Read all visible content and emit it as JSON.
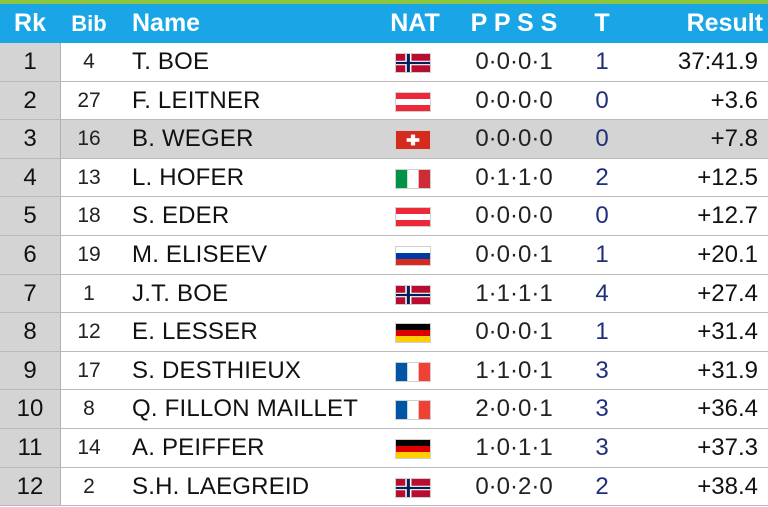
{
  "header": {
    "rank": "Rk",
    "bib": "Bib",
    "name": "Name",
    "nat": "NAT",
    "penalties": "P P S S",
    "total": "T",
    "result": "Result"
  },
  "colors": {
    "header_bg": "#1aa6e6",
    "accent_line": "#8cc63f",
    "rank_cell_bg": "#d4d4d4",
    "total_text": "#1f2f7a"
  },
  "rows": [
    {
      "rank": "1",
      "bib": "4",
      "name": "T. BOE",
      "nat": "NOR",
      "penalties": "0·0·0·1",
      "total": "1",
      "result": "37:41.9",
      "highlight": false
    },
    {
      "rank": "2",
      "bib": "27",
      "name": "F. LEITNER",
      "nat": "AUT",
      "penalties": "0·0·0·0",
      "total": "0",
      "result": "+3.6",
      "highlight": false
    },
    {
      "rank": "3",
      "bib": "16",
      "name": "B. WEGER",
      "nat": "SUI",
      "penalties": "0·0·0·0",
      "total": "0",
      "result": "+7.8",
      "highlight": true
    },
    {
      "rank": "4",
      "bib": "13",
      "name": "L. HOFER",
      "nat": "ITA",
      "penalties": "0·1·1·0",
      "total": "2",
      "result": "+12.5",
      "highlight": false
    },
    {
      "rank": "5",
      "bib": "18",
      "name": "S. EDER",
      "nat": "AUT",
      "penalties": "0·0·0·0",
      "total": "0",
      "result": "+12.7",
      "highlight": false
    },
    {
      "rank": "6",
      "bib": "19",
      "name": "M. ELISEEV",
      "nat": "RUS",
      "penalties": "0·0·0·1",
      "total": "1",
      "result": "+20.1",
      "highlight": false
    },
    {
      "rank": "7",
      "bib": "1",
      "name": "J.T. BOE",
      "nat": "NOR",
      "penalties": "1·1·1·1",
      "total": "4",
      "result": "+27.4",
      "highlight": false
    },
    {
      "rank": "8",
      "bib": "12",
      "name": "E. LESSER",
      "nat": "GER",
      "penalties": "0·0·0·1",
      "total": "1",
      "result": "+31.4",
      "highlight": false
    },
    {
      "rank": "9",
      "bib": "17",
      "name": "S. DESTHIEUX",
      "nat": "FRA",
      "penalties": "1·1·0·1",
      "total": "3",
      "result": "+31.9",
      "highlight": false
    },
    {
      "rank": "10",
      "bib": "8",
      "name": "Q. FILLON MAILLET",
      "nat": "FRA",
      "penalties": "2·0·0·1",
      "total": "3",
      "result": "+36.4",
      "highlight": false
    },
    {
      "rank": "11",
      "bib": "14",
      "name": "A. PEIFFER",
      "nat": "GER",
      "penalties": "1·0·1·1",
      "total": "3",
      "result": "+37.3",
      "highlight": false
    },
    {
      "rank": "12",
      "bib": "2",
      "name": "S.H. LAEGREID",
      "nat": "NOR",
      "penalties": "0·0·2·0",
      "total": "2",
      "result": "+38.4",
      "highlight": false
    }
  ]
}
